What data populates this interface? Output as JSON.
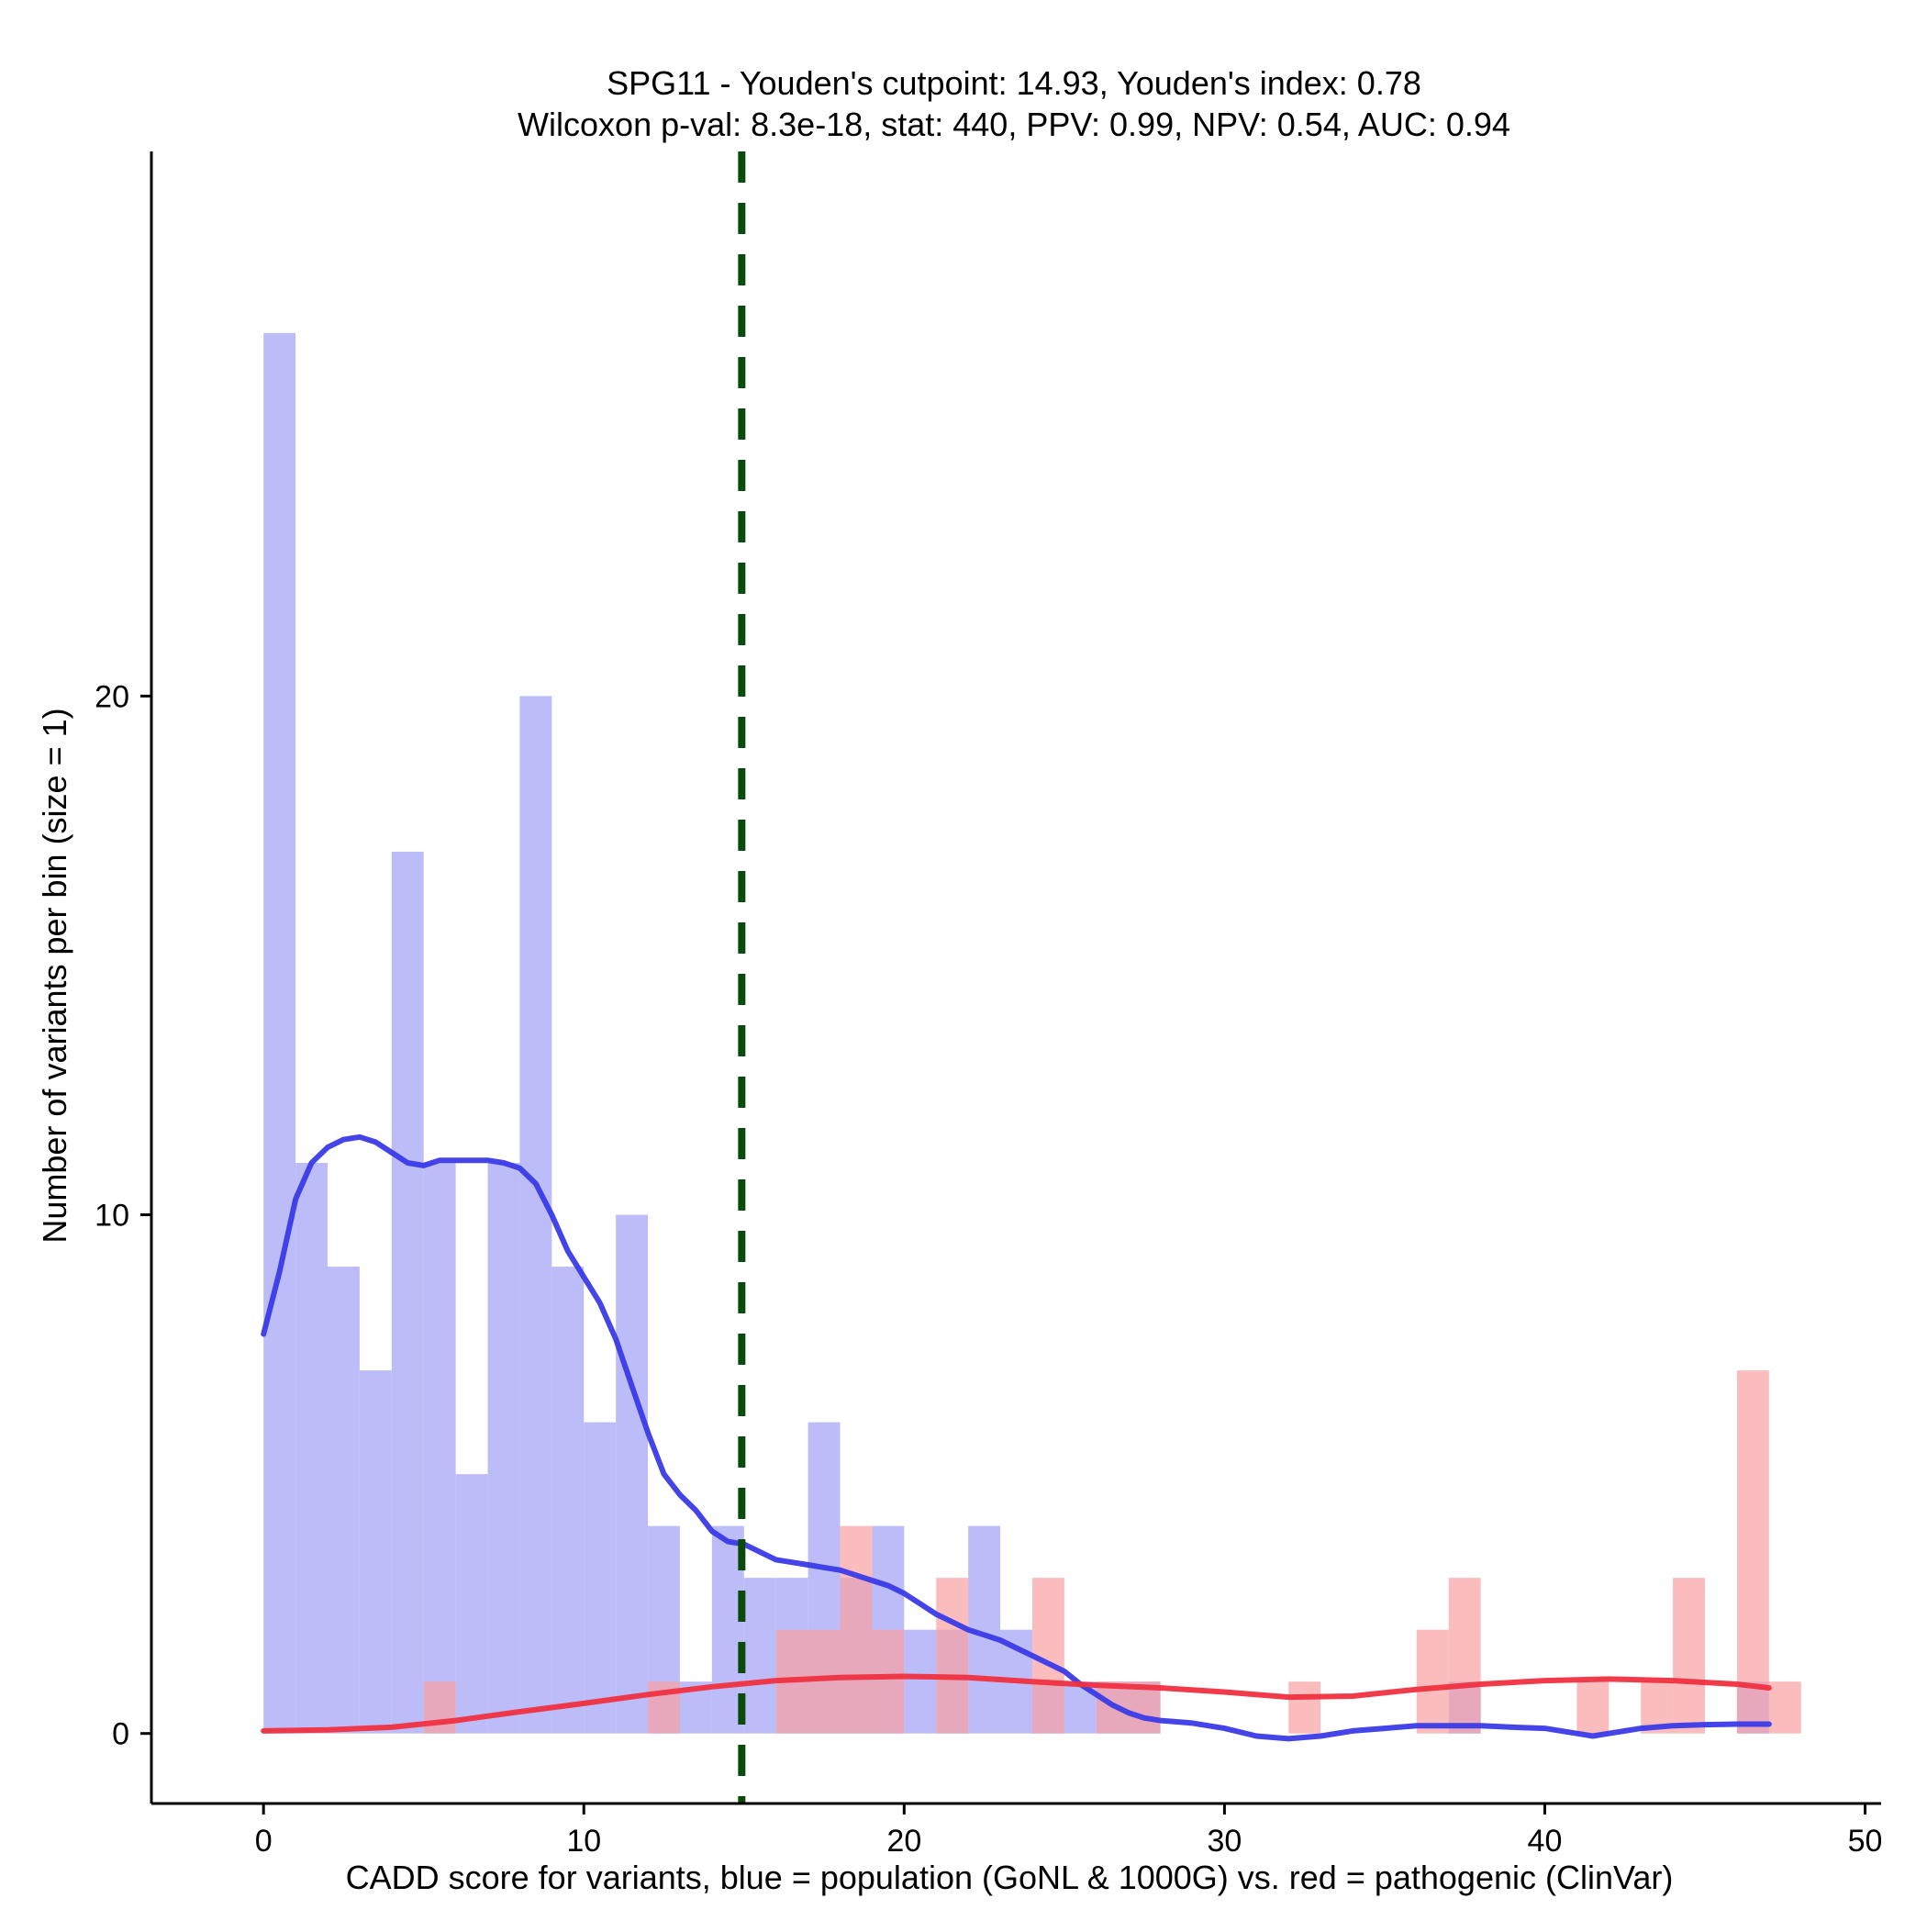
{
  "chart_data": {
    "type": "bar",
    "title_line1": "SPG11 - Youden's cutpoint: 14.93, Youden's index: 0.78",
    "title_line2": "Wilcoxon p-val: 8.3e-18, stat: 440, PPV: 0.99, NPV: 0.54, AUC: 0.94",
    "xlabel": "CADD score for variants, blue = population (GoNL & 1000G) vs. red = pathogenic (ClinVar)",
    "ylabel": "Number of variants per bin (size = 1)",
    "xlim": [
      -3.5,
      50.5
    ],
    "ylim": [
      -1.35,
      30.5
    ],
    "x_ticks": [
      0,
      10,
      20,
      30,
      40,
      50
    ],
    "y_ticks": [
      0,
      10,
      20
    ],
    "bin_size": 1,
    "cutpoint": 14.93,
    "series": [
      {
        "name": "population (GoNL & 1000G)",
        "color": "#b0b0f8",
        "bins": [
          {
            "start": 0,
            "count": 27
          },
          {
            "start": 1,
            "count": 11
          },
          {
            "start": 2,
            "count": 9
          },
          {
            "start": 3,
            "count": 7
          },
          {
            "start": 4,
            "count": 17
          },
          {
            "start": 5,
            "count": 11
          },
          {
            "start": 6,
            "count": 5
          },
          {
            "start": 7,
            "count": 11
          },
          {
            "start": 8,
            "count": 20
          },
          {
            "start": 9,
            "count": 9
          },
          {
            "start": 10,
            "count": 6
          },
          {
            "start": 11,
            "count": 10
          },
          {
            "start": 12,
            "count": 4
          },
          {
            "start": 13,
            "count": 1
          },
          {
            "start": 14,
            "count": 4
          },
          {
            "start": 15,
            "count": 3
          },
          {
            "start": 16,
            "count": 3
          },
          {
            "start": 17,
            "count": 6
          },
          {
            "start": 18,
            "count": 3
          },
          {
            "start": 19,
            "count": 4
          },
          {
            "start": 20,
            "count": 2
          },
          {
            "start": 21,
            "count": 2
          },
          {
            "start": 22,
            "count": 4
          },
          {
            "start": 23,
            "count": 2
          },
          {
            "start": 24,
            "count": 1
          },
          {
            "start": 25,
            "count": 1
          },
          {
            "start": 26,
            "count": 1
          },
          {
            "start": 27,
            "count": 1
          },
          {
            "start": 37,
            "count": 1
          },
          {
            "start": 46,
            "count": 1
          }
        ]
      },
      {
        "name": "pathogenic (ClinVar)",
        "color": "#f8a0a0",
        "bins": [
          {
            "start": 5,
            "count": 1
          },
          {
            "start": 12,
            "count": 1
          },
          {
            "start": 16,
            "count": 2
          },
          {
            "start": 17,
            "count": 2
          },
          {
            "start": 18,
            "count": 4
          },
          {
            "start": 19,
            "count": 2
          },
          {
            "start": 21,
            "count": 3
          },
          {
            "start": 24,
            "count": 3
          },
          {
            "start": 26,
            "count": 1
          },
          {
            "start": 27,
            "count": 1
          },
          {
            "start": 32,
            "count": 1
          },
          {
            "start": 36,
            "count": 2
          },
          {
            "start": 37,
            "count": 3
          },
          {
            "start": 41,
            "count": 1
          },
          {
            "start": 43,
            "count": 1
          },
          {
            "start": 44,
            "count": 3
          },
          {
            "start": 46,
            "count": 7
          },
          {
            "start": 47,
            "count": 1
          }
        ]
      }
    ],
    "density_lines": [
      {
        "name": "population density",
        "color": "#3a3ae8",
        "points": [
          [
            0,
            7.7
          ],
          [
            0.5,
            8.9
          ],
          [
            1,
            10.3
          ],
          [
            1.5,
            11.0
          ],
          [
            2,
            11.3
          ],
          [
            2.5,
            11.45
          ],
          [
            3,
            11.5
          ],
          [
            3.5,
            11.4
          ],
          [
            4,
            11.2
          ],
          [
            4.5,
            11.0
          ],
          [
            5,
            10.95
          ],
          [
            5.5,
            11.05
          ],
          [
            6,
            11.05
          ],
          [
            6.5,
            11.05
          ],
          [
            7,
            11.05
          ],
          [
            7.5,
            11.0
          ],
          [
            8,
            10.9
          ],
          [
            8.5,
            10.6
          ],
          [
            9,
            10.0
          ],
          [
            9.5,
            9.3
          ],
          [
            10,
            8.8
          ],
          [
            10.5,
            8.3
          ],
          [
            11,
            7.6
          ],
          [
            11.5,
            6.7
          ],
          [
            12,
            5.8
          ],
          [
            12.5,
            5.0
          ],
          [
            13,
            4.6
          ],
          [
            13.5,
            4.3
          ],
          [
            14,
            3.9
          ],
          [
            14.5,
            3.7
          ],
          [
            15,
            3.65
          ],
          [
            15.5,
            3.5
          ],
          [
            16,
            3.35
          ],
          [
            16.5,
            3.3
          ],
          [
            17,
            3.25
          ],
          [
            17.5,
            3.2
          ],
          [
            18,
            3.15
          ],
          [
            18.5,
            3.05
          ],
          [
            19,
            2.95
          ],
          [
            19.5,
            2.85
          ],
          [
            20,
            2.7
          ],
          [
            20.5,
            2.5
          ],
          [
            21,
            2.3
          ],
          [
            21.5,
            2.15
          ],
          [
            22,
            2.0
          ],
          [
            22.5,
            1.9
          ],
          [
            23,
            1.8
          ],
          [
            23.5,
            1.65
          ],
          [
            24,
            1.5
          ],
          [
            24.5,
            1.35
          ],
          [
            25,
            1.2
          ],
          [
            25.5,
            0.95
          ],
          [
            26,
            0.75
          ],
          [
            26.5,
            0.55
          ],
          [
            27,
            0.4
          ],
          [
            27.5,
            0.3
          ],
          [
            28,
            0.25
          ],
          [
            29,
            0.2
          ],
          [
            30,
            0.1
          ],
          [
            31,
            -0.05
          ],
          [
            32,
            -0.1
          ],
          [
            33,
            -0.05
          ],
          [
            34,
            0.05
          ],
          [
            35,
            0.1
          ],
          [
            36,
            0.15
          ],
          [
            37,
            0.15
          ],
          [
            38,
            0.15
          ],
          [
            39,
            0.12
          ],
          [
            40,
            0.1
          ],
          [
            41,
            0.0
          ],
          [
            41.5,
            -0.05
          ],
          [
            42,
            0.0
          ],
          [
            43,
            0.1
          ],
          [
            44,
            0.15
          ],
          [
            45,
            0.17
          ],
          [
            46,
            0.18
          ],
          [
            47,
            0.18
          ]
        ]
      },
      {
        "name": "pathogenic density",
        "color": "#f03040",
        "points": [
          [
            0,
            0.05
          ],
          [
            2,
            0.07
          ],
          [
            4,
            0.12
          ],
          [
            6,
            0.25
          ],
          [
            8,
            0.42
          ],
          [
            10,
            0.58
          ],
          [
            12,
            0.75
          ],
          [
            14,
            0.9
          ],
          [
            16,
            1.02
          ],
          [
            18,
            1.08
          ],
          [
            20,
            1.1
          ],
          [
            22,
            1.08
          ],
          [
            24,
            1.0
          ],
          [
            26,
            0.93
          ],
          [
            28,
            0.88
          ],
          [
            30,
            0.8
          ],
          [
            32,
            0.7
          ],
          [
            34,
            0.72
          ],
          [
            36,
            0.85
          ],
          [
            38,
            0.95
          ],
          [
            40,
            1.02
          ],
          [
            42,
            1.05
          ],
          [
            44,
            1.02
          ],
          [
            46,
            0.95
          ],
          [
            47,
            0.88
          ]
        ]
      }
    ],
    "cutpoint_color": "#0a4a0a"
  }
}
